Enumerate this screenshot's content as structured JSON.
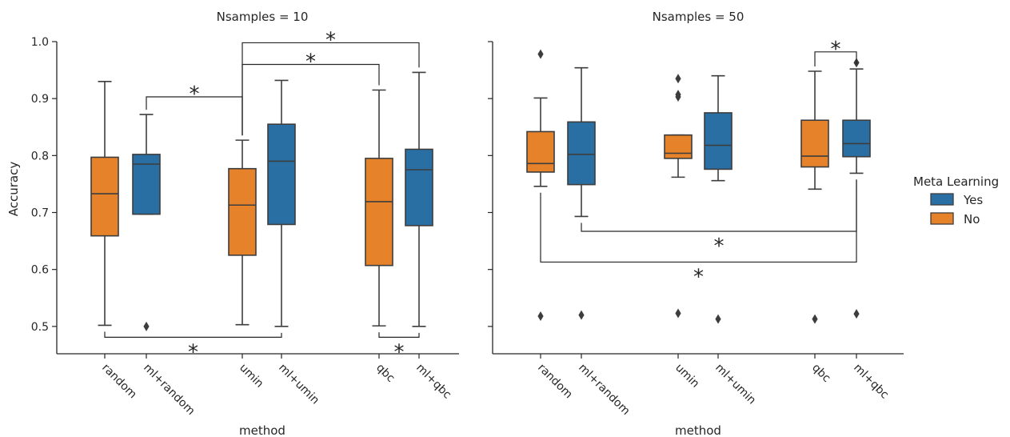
{
  "chart_data": {
    "type": "box",
    "ylabel": "Accuracy",
    "yticks": [
      0.5,
      0.6,
      0.7,
      0.8,
      0.9,
      1.0
    ],
    "ylim": [
      0.452,
      1.0
    ],
    "legend": {
      "title": "Meta Learning",
      "position": "right",
      "entries": [
        {
          "label": "Yes",
          "color": "#2a6fa3"
        },
        {
          "label": "No",
          "color": "#e5822a"
        }
      ]
    },
    "star_symbol": "*",
    "panels": [
      {
        "title": "Nsamples = 10",
        "xlabel": "method",
        "categories": [
          "random",
          "ml+random",
          "umin",
          "ml+umin",
          "qbc",
          "ml+qbc"
        ],
        "boxes": [
          {
            "method": "random",
            "meta": "No",
            "whislo": 0.502,
            "q1": 0.659,
            "med": 0.733,
            "q3": 0.797,
            "whishi": 0.93,
            "fliers": []
          },
          {
            "method": "ml+random",
            "meta": "Yes",
            "whislo": 0.697,
            "q1": 0.697,
            "med": 0.785,
            "q3": 0.802,
            "whishi": 0.872,
            "fliers": [
              0.5
            ]
          },
          {
            "method": "umin",
            "meta": "No",
            "whislo": 0.503,
            "q1": 0.625,
            "med": 0.713,
            "q3": 0.777,
            "whishi": 0.827,
            "fliers": []
          },
          {
            "method": "ml+umin",
            "meta": "Yes",
            "whislo": 0.5,
            "q1": 0.679,
            "med": 0.79,
            "q3": 0.855,
            "whishi": 0.932,
            "fliers": []
          },
          {
            "method": "qbc",
            "meta": "No",
            "whislo": 0.501,
            "q1": 0.607,
            "med": 0.719,
            "q3": 0.795,
            "whishi": 0.915,
            "fliers": []
          },
          {
            "method": "ml+qbc",
            "meta": "Yes",
            "whislo": 0.5,
            "q1": 0.677,
            "med": 0.775,
            "q3": 0.811,
            "whishi": 0.946,
            "fliers": []
          }
        ],
        "significance": [
          {
            "from": "ml+random",
            "to": "umin",
            "y": 0.903,
            "side": "above",
            "label": "*"
          },
          {
            "from": "umin",
            "to": "qbc",
            "y": 0.96,
            "side": "above",
            "label": "*"
          },
          {
            "from": "umin",
            "to": "ml+qbc",
            "y": 0.998,
            "side": "above",
            "label": "*"
          },
          {
            "from": "random",
            "to": "ml+umin",
            "y": 0.481,
            "side": "below",
            "label": "*"
          },
          {
            "from": "qbc",
            "to": "ml+qbc",
            "y": 0.481,
            "side": "below",
            "label": "*"
          }
        ]
      },
      {
        "title": "Nsamples = 50",
        "xlabel": "method",
        "categories": [
          "random",
          "ml+random",
          "umin",
          "ml+umin",
          "qbc",
          "ml+qbc"
        ],
        "boxes": [
          {
            "method": "random",
            "meta": "No",
            "whislo": 0.746,
            "q1": 0.771,
            "med": 0.786,
            "q3": 0.842,
            "whishi": 0.901,
            "fliers": [
              0.978,
              0.518
            ]
          },
          {
            "method": "ml+random",
            "meta": "Yes",
            "whislo": 0.693,
            "q1": 0.749,
            "med": 0.802,
            "q3": 0.859,
            "whishi": 0.954,
            "fliers": [
              0.52
            ]
          },
          {
            "method": "umin",
            "meta": "No",
            "whislo": 0.762,
            "q1": 0.795,
            "med": 0.804,
            "q3": 0.836,
            "whishi": 0.836,
            "fliers": [
              0.935,
              0.907,
              0.903,
              0.523
            ]
          },
          {
            "method": "ml+umin",
            "meta": "Yes",
            "whislo": 0.756,
            "q1": 0.776,
            "med": 0.818,
            "q3": 0.875,
            "whishi": 0.94,
            "fliers": [
              0.513
            ]
          },
          {
            "method": "qbc",
            "meta": "No",
            "whislo": 0.741,
            "q1": 0.78,
            "med": 0.799,
            "q3": 0.862,
            "whishi": 0.948,
            "fliers": [
              0.513
            ]
          },
          {
            "method": "ml+qbc",
            "meta": "Yes",
            "whislo": 0.769,
            "q1": 0.798,
            "med": 0.821,
            "q3": 0.862,
            "whishi": 0.952,
            "fliers": [
              0.963,
              0.522
            ]
          }
        ],
        "significance": [
          {
            "from": "qbc",
            "to": "ml+qbc",
            "y": 0.982,
            "side": "above",
            "label": "*"
          },
          {
            "from": "ml+random",
            "to": "ml+qbc",
            "y": 0.667,
            "side": "below",
            "label": "*"
          },
          {
            "from": "random",
            "to": "ml+qbc",
            "y": 0.613,
            "side": "below",
            "label": "*"
          }
        ]
      }
    ]
  }
}
